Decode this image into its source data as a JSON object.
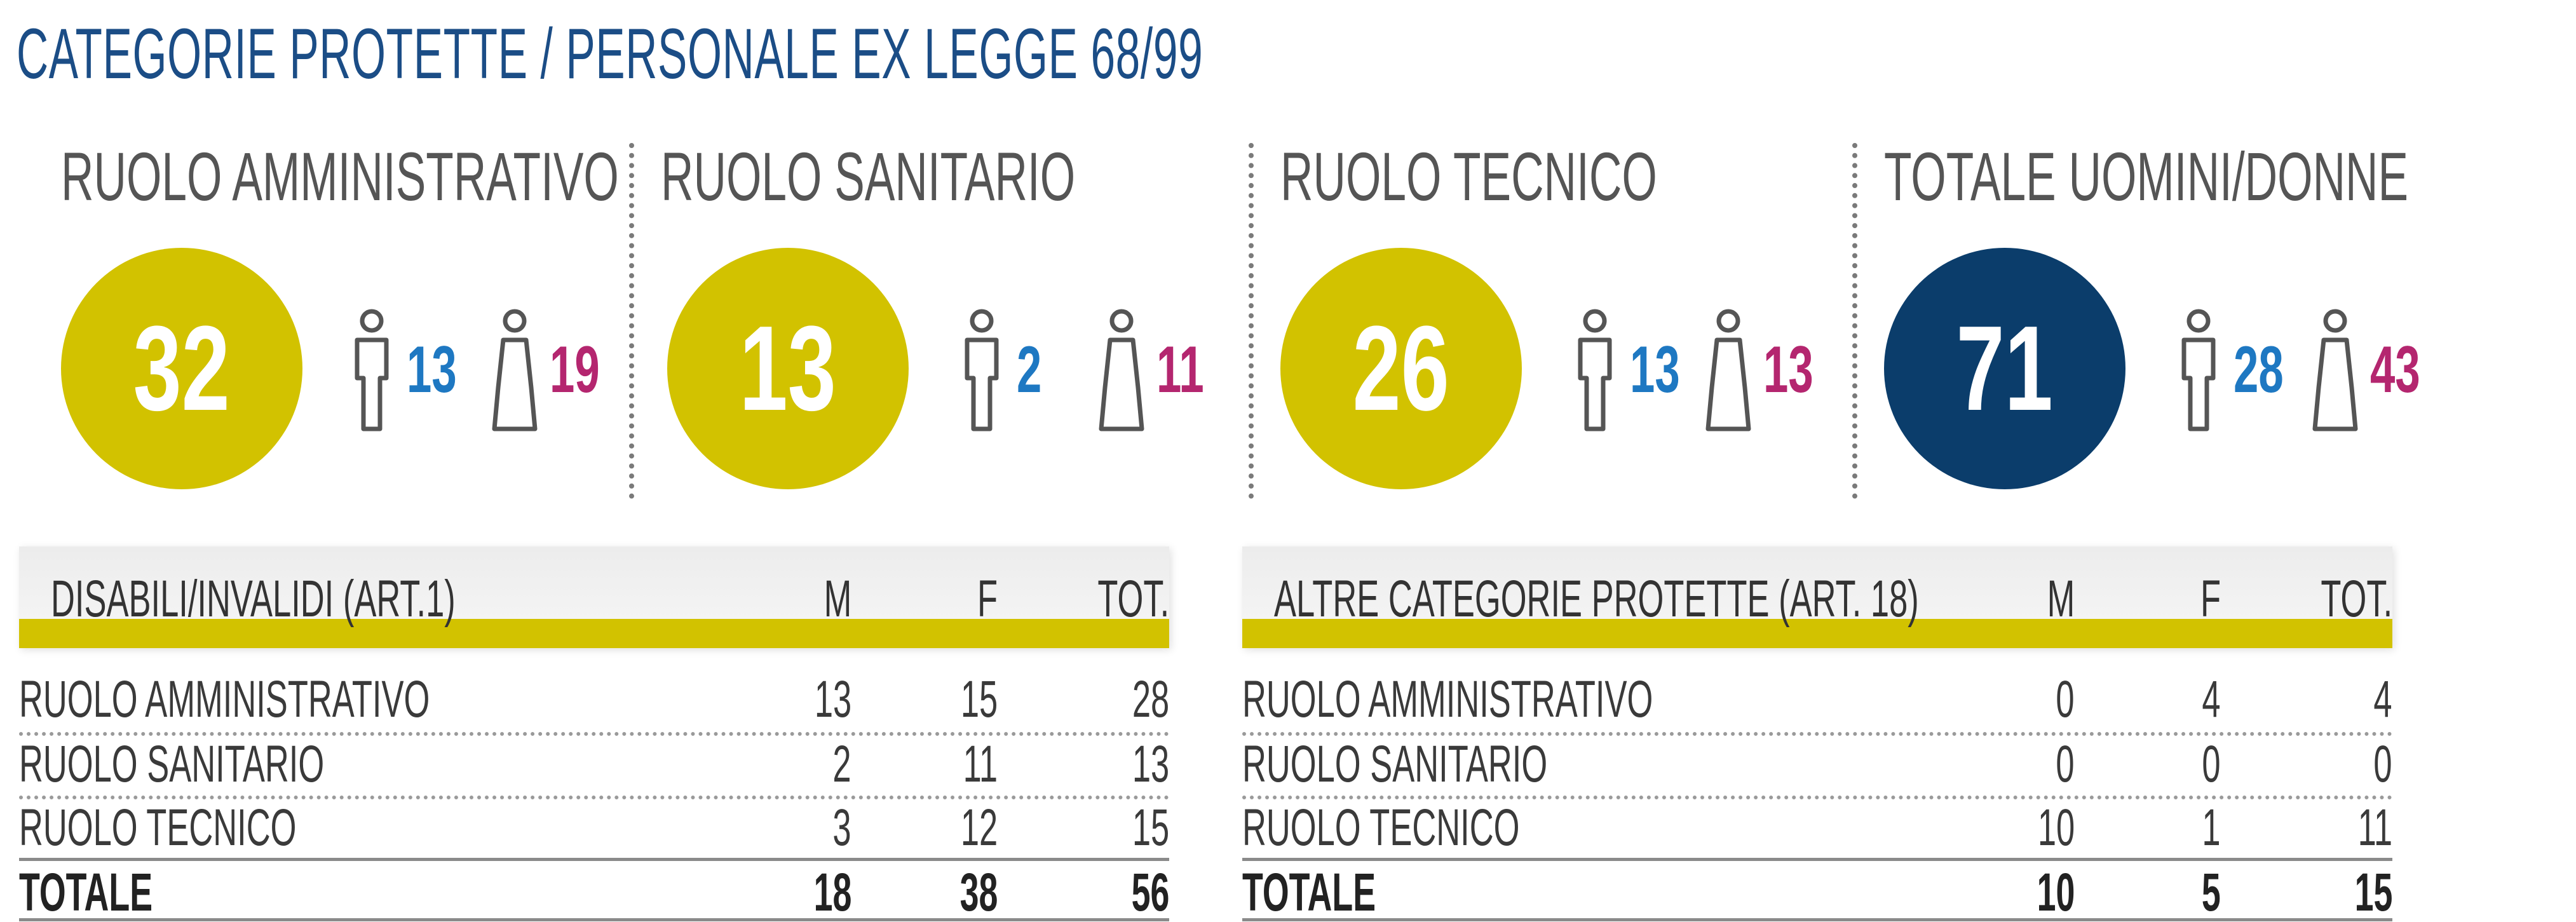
{
  "title": "CATEGORIE PROTETTE / PERSONALE EX LEGGE 68/99",
  "panels": [
    {
      "label": "RUOLO AMMINISTRATIVO",
      "total": "32",
      "men": "13",
      "women": "19"
    },
    {
      "label": "RUOLO SANITARIO",
      "total": "13",
      "men": "2",
      "women": "11"
    },
    {
      "label": "RUOLO TECNICO",
      "total": "26",
      "men": "13",
      "women": "13"
    },
    {
      "label": "TOTALE UOMINI/DONNE",
      "total": "71",
      "men": "28",
      "women": "43"
    }
  ],
  "colors": {
    "accent_yellow": "#d2c200",
    "dark_blue": "#0b3d6b",
    "men": "#1e78c2",
    "women": "#b4266f",
    "title": "#1b4d86"
  },
  "tables": [
    {
      "header": {
        "label": "DISABILI/INVALIDI (ART.1)",
        "m": "M",
        "f": "F",
        "tot": "TOT."
      },
      "rows": [
        {
          "label": "RUOLO AMMINISTRATIVO",
          "m": "13",
          "f": "15",
          "tot": "28"
        },
        {
          "label": "RUOLO SANITARIO",
          "m": "2",
          "f": "11",
          "tot": "13"
        },
        {
          "label": "RUOLO TECNICO",
          "m": "3",
          "f": "12",
          "tot": "15"
        }
      ],
      "total": {
        "label": "TOTALE",
        "m": "18",
        "f": "38",
        "tot": "56"
      }
    },
    {
      "header": {
        "label": "ALTRE CATEGORIE PROTETTE (ART. 18)",
        "m": "M",
        "f": "F",
        "tot": "TOT."
      },
      "rows": [
        {
          "label": "RUOLO AMMINISTRATIVO",
          "m": "0",
          "f": "4",
          "tot": "4"
        },
        {
          "label": "RUOLO SANITARIO",
          "m": "0",
          "f": "0",
          "tot": "0"
        },
        {
          "label": "RUOLO TECNICO",
          "m": "10",
          "f": "1",
          "tot": "11"
        }
      ],
      "total": {
        "label": "TOTALE",
        "m": "10",
        "f": "5",
        "tot": "15"
      }
    }
  ],
  "chart_data": {
    "type": "table",
    "title": "CATEGORIE PROTETTE / PERSONALE EX LEGGE 68/99",
    "categories": [
      "RUOLO AMMINISTRATIVO",
      "RUOLO SANITARIO",
      "RUOLO TECNICO",
      "TOTALE"
    ],
    "series": [
      {
        "name": "DISABILI/INVALIDI (ART.1) M",
        "values": [
          13,
          2,
          3,
          18
        ]
      },
      {
        "name": "DISABILI/INVALIDI (ART.1) F",
        "values": [
          15,
          11,
          12,
          38
        ]
      },
      {
        "name": "DISABILI/INVALIDI (ART.1) TOT.",
        "values": [
          28,
          13,
          15,
          56
        ]
      },
      {
        "name": "ALTRE CATEGORIE PROTETTE (ART. 18) M",
        "values": [
          0,
          0,
          10,
          10
        ]
      },
      {
        "name": "ALTRE CATEGORIE PROTETTE (ART. 18) F",
        "values": [
          4,
          0,
          1,
          5
        ]
      },
      {
        "name": "ALTRE CATEGORIE PROTETTE (ART. 18) TOT.",
        "values": [
          4,
          0,
          11,
          15
        ]
      }
    ]
  }
}
